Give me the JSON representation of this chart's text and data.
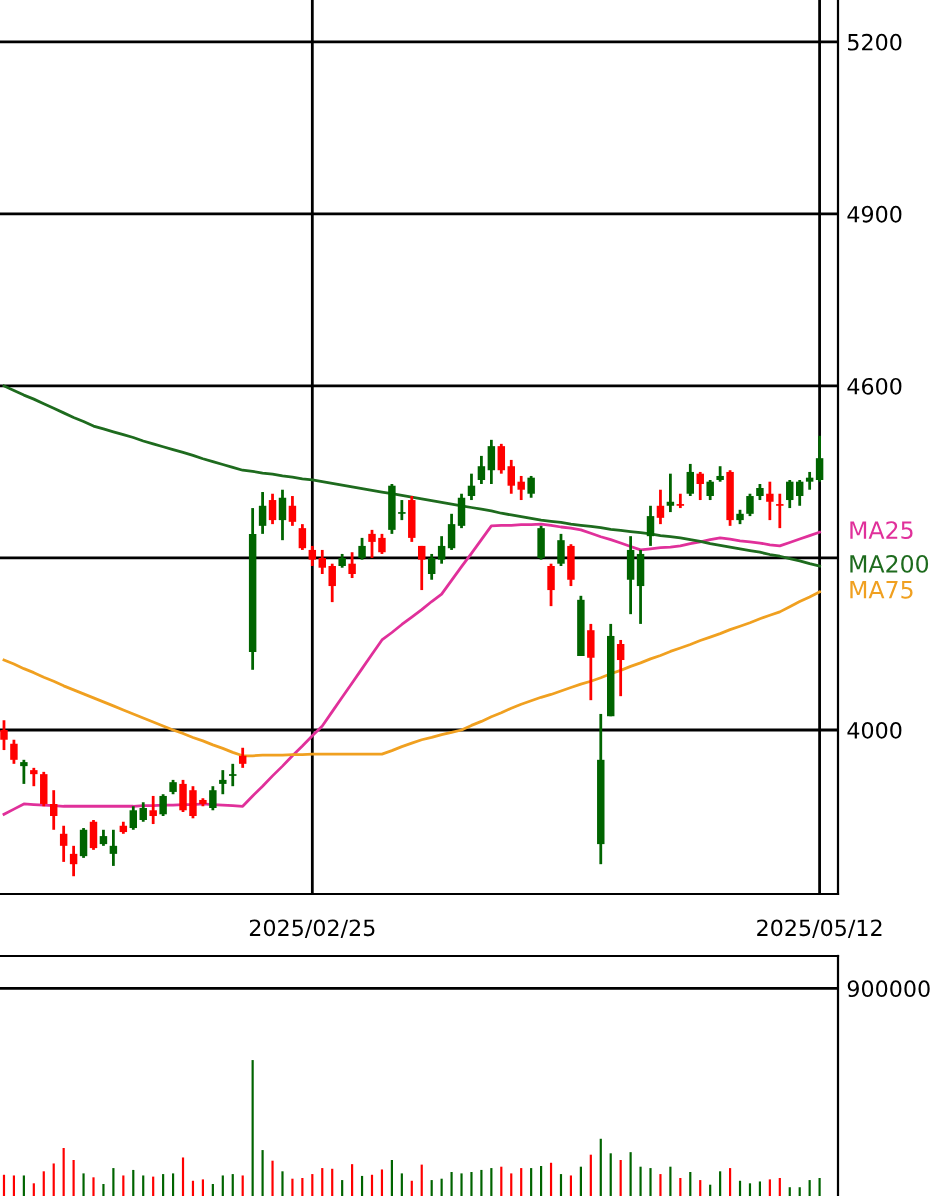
{
  "chart_data": [
    {
      "type": "candlestick",
      "categories": [
        null,
        null,
        null,
        null,
        null,
        null,
        null,
        null,
        null,
        null,
        null,
        null,
        null,
        null,
        null,
        null,
        null,
        null,
        null,
        null,
        null,
        null,
        null,
        null,
        null,
        null,
        null,
        null,
        null,
        null,
        null,
        "2025/02/25",
        null,
        null,
        null,
        null,
        null,
        null,
        null,
        null,
        null,
        null,
        null,
        null,
        null,
        null,
        null,
        null,
        null,
        null,
        null,
        null,
        null,
        null,
        null,
        null,
        null,
        null,
        null,
        null,
        null,
        null,
        null,
        null,
        null,
        null,
        null,
        null,
        null,
        null,
        null,
        null,
        null,
        null,
        null,
        null,
        null,
        null,
        null,
        null,
        null,
        null,
        "2025/05/12"
      ],
      "ohlc": [
        [
          4000,
          4017,
          3965,
          3983
        ],
        [
          3976,
          3983,
          3941,
          3948
        ],
        [
          3937,
          3948,
          3906,
          3944
        ],
        [
          3930,
          3934,
          3902,
          3923
        ],
        [
          3923,
          3927,
          3867,
          3871
        ],
        [
          3871,
          3895,
          3826,
          3850
        ],
        [
          3819,
          3833,
          3770,
          3798
        ],
        [
          3784,
          3798,
          3745,
          3766
        ],
        [
          3780,
          3829,
          3777,
          3826
        ],
        [
          3840,
          3843,
          3791,
          3794
        ],
        [
          3801,
          3826,
          3798,
          3815
        ],
        [
          3784,
          3826,
          3763,
          3798
        ],
        [
          3833,
          3840,
          3819,
          3822
        ],
        [
          3829,
          3867,
          3826,
          3860
        ],
        [
          3843,
          3874,
          3840,
          3864
        ],
        [
          3860,
          3885,
          3836,
          3850
        ],
        [
          3853,
          3888,
          3850,
          3885
        ],
        [
          3892,
          3913,
          3888,
          3909
        ],
        [
          3906,
          3913,
          3857,
          3860
        ],
        [
          3895,
          3902,
          3846,
          3850
        ],
        [
          3878,
          3881,
          3867,
          3871
        ],
        [
          3864,
          3902,
          3860,
          3895
        ],
        [
          3906,
          3930,
          3888,
          3913
        ],
        [
          3920,
          3941,
          3902,
          3923
        ],
        [
          3955,
          3969,
          3934,
          3941
        ],
        [
          4136,
          4387,
          4105,
          4342
        ],
        [
          4356,
          4415,
          4342,
          4391
        ],
        [
          4401,
          4412,
          4359,
          4366
        ],
        [
          4366,
          4419,
          4331,
          4405
        ],
        [
          4391,
          4408,
          4356,
          4363
        ],
        [
          4352,
          4359,
          4314,
          4317
        ],
        [
          4314,
          4321,
          4286,
          4297
        ],
        [
          4300,
          4314,
          4272,
          4283
        ],
        [
          4286,
          4290,
          4223,
          4251
        ],
        [
          4286,
          4307,
          4283,
          4300
        ],
        [
          4290,
          4310,
          4265,
          4272
        ],
        [
          4300,
          4335,
          4297,
          4321
        ],
        [
          4342,
          4349,
          4300,
          4328
        ],
        [
          4335,
          4342,
          4307,
          4310
        ],
        [
          4349,
          4429,
          4342,
          4426
        ],
        [
          4377,
          4401,
          4366,
          4380
        ],
        [
          4401,
          4408,
          4328,
          4335
        ],
        [
          4321,
          4321,
          4244,
          4297
        ],
        [
          4272,
          4307,
          4262,
          4300
        ],
        [
          4297,
          4338,
          4290,
          4321
        ],
        [
          4317,
          4377,
          4314,
          4359
        ],
        [
          4356,
          4412,
          4352,
          4405
        ],
        [
          4408,
          4447,
          4401,
          4426
        ],
        [
          4436,
          4478,
          4429,
          4460
        ],
        [
          4453,
          4506,
          4429,
          4495
        ],
        [
          4495,
          4499,
          4447,
          4453
        ],
        [
          4460,
          4471,
          4412,
          4426
        ],
        [
          4433,
          4443,
          4401,
          4419
        ],
        [
          4412,
          4443,
          4405,
          4440
        ],
        [
          4300,
          4356,
          4297,
          4352
        ],
        [
          4286,
          4290,
          4216,
          4244
        ],
        [
          4290,
          4342,
          4286,
          4331
        ],
        [
          4321,
          4324,
          4251,
          4262
        ],
        [
          4129,
          4234,
          4129,
          4227
        ],
        [
          4174,
          4185,
          4052,
          4126
        ],
        [
          3801,
          4028,
          3766,
          3948
        ],
        [
          4024,
          4185,
          4024,
          4164
        ],
        [
          4150,
          4157,
          4059,
          4122
        ],
        [
          4262,
          4338,
          4202,
          4314
        ],
        [
          4251,
          4314,
          4185,
          4307
        ],
        [
          4338,
          4391,
          4321,
          4373
        ],
        [
          4391,
          4419,
          4359,
          4370
        ],
        [
          4391,
          4447,
          4380,
          4398
        ],
        [
          4394,
          4412,
          4387,
          4391
        ],
        [
          4412,
          4464,
          4408,
          4450
        ],
        [
          4447,
          4450,
          4401,
          4429
        ],
        [
          4408,
          4436,
          4401,
          4433
        ],
        [
          4436,
          4460,
          4433,
          4443
        ],
        [
          4450,
          4453,
          4356,
          4366
        ],
        [
          4366,
          4384,
          4359,
          4377
        ],
        [
          4377,
          4412,
          4373,
          4408
        ],
        [
          4408,
          4429,
          4401,
          4422
        ],
        [
          4412,
          4433,
          4366,
          4398
        ],
        [
          4394,
          4412,
          4352,
          4391
        ],
        [
          4401,
          4436,
          4387,
          4433
        ],
        [
          4408,
          4436,
          4391,
          4433
        ],
        [
          4433,
          4450,
          4419,
          4440
        ],
        [
          4436,
          4513,
          4433,
          4474
        ]
      ],
      "colors": [
        "#ff0000",
        "#ff0000",
        "#006400",
        "#ff0000",
        "#ff0000",
        "#ff0000",
        "#ff0000",
        "#ff0000",
        "#006400",
        "#ff0000",
        "#006400",
        "#006400",
        "#ff0000",
        "#006400",
        "#006400",
        "#ff0000",
        "#006400",
        "#006400",
        "#ff0000",
        "#ff0000",
        "#ff0000",
        "#006400",
        "#006400",
        "#006400",
        "#ff0000",
        "#006400",
        "#006400",
        "#ff0000",
        "#006400",
        "#ff0000",
        "#ff0000",
        "#ff0000",
        "#ff0000",
        "#ff0000",
        "#006400",
        "#ff0000",
        "#006400",
        "#ff0000",
        "#ff0000",
        "#006400",
        "#006400",
        "#ff0000",
        "#ff0000",
        "#006400",
        "#006400",
        "#006400",
        "#006400",
        "#006400",
        "#006400",
        "#006400",
        "#ff0000",
        "#ff0000",
        "#ff0000",
        "#006400",
        "#006400",
        "#ff0000",
        "#006400",
        "#ff0000",
        "#006400",
        "#ff0000",
        "#006400",
        "#006400",
        "#ff0000",
        "#006400",
        "#006400",
        "#006400",
        "#ff0000",
        "#006400",
        "#ff0000",
        "#006400",
        "#ff0000",
        "#006400",
        "#006400",
        "#ff0000",
        "#006400",
        "#006400",
        "#006400",
        "#ff0000",
        "#ff0000",
        "#006400",
        "#006400",
        "#006400",
        "#006400"
      ],
      "series": [
        {
          "name": "MA25",
          "type": "line",
          "color": "#e0309a",
          "values": [
            3853,
            3862,
            3871,
            3870,
            3869,
            3868,
            3867,
            3867,
            3867,
            3867,
            3867,
            3867,
            3867,
            3867,
            3868,
            3868,
            3869,
            3869,
            3870,
            3870,
            3871,
            3870,
            3869,
            3868,
            3867,
            3885,
            3902,
            3920,
            3937,
            3955,
            3972,
            3990,
            4007,
            4032,
            4057,
            4082,
            4107,
            4132,
            4157,
            4170,
            4184,
            4197,
            4210,
            4224,
            4237,
            4261,
            4285,
            4308,
            4332,
            4356,
            4357,
            4357,
            4358,
            4358,
            4359,
            4357,
            4354,
            4352,
            4349,
            4343,
            4337,
            4332,
            4326,
            4320,
            4314,
            4316,
            4318,
            4319,
            4321,
            4325,
            4328,
            4332,
            4335,
            4333,
            4330,
            4328,
            4326,
            4323,
            4321,
            4327,
            4333,
            4339,
            4345
          ]
        },
        {
          "name": "MA200",
          "type": "line",
          "color": "#1e6b1e",
          "values": [
            4600,
            4592,
            4584,
            4577,
            4569,
            4561,
            4553,
            4545,
            4538,
            4530,
            4525,
            4520,
            4515,
            4510,
            4504,
            4499,
            4494,
            4489,
            4484,
            4479,
            4473,
            4468,
            4463,
            4458,
            4453,
            4451,
            4448,
            4446,
            4443,
            4441,
            4438,
            4436,
            4433,
            4430,
            4427,
            4424,
            4421,
            4418,
            4415,
            4412,
            4409,
            4406,
            4403,
            4400,
            4397,
            4394,
            4391,
            4388,
            4385,
            4382,
            4378,
            4375,
            4372,
            4369,
            4366,
            4364,
            4362,
            4359,
            4357,
            4355,
            4353,
            4350,
            4348,
            4346,
            4344,
            4342,
            4339,
            4337,
            4335,
            4332,
            4329,
            4325,
            4322,
            4319,
            4316,
            4313,
            4310,
            4306,
            4303,
            4299,
            4295,
            4290,
            4286
          ]
        },
        {
          "name": "MA75",
          "type": "line",
          "color": "#f0a020",
          "values": [
            4122,
            4115,
            4107,
            4100,
            4092,
            4085,
            4077,
            4070,
            4063,
            4056,
            4049,
            4042,
            4035,
            4028,
            4021,
            4014,
            4007,
            4000,
            3994,
            3987,
            3981,
            3974,
            3968,
            3961,
            3955,
            3955,
            3956,
            3956,
            3956,
            3957,
            3957,
            3958,
            3958,
            3958,
            3958,
            3958,
            3958,
            3958,
            3958,
            3964,
            3971,
            3977,
            3983,
            3987,
            3992,
            3996,
            4000,
            4008,
            4015,
            4023,
            4030,
            4038,
            4045,
            4051,
            4057,
            4062,
            4068,
            4074,
            4080,
            4085,
            4091,
            4098,
            4104,
            4111,
            4117,
            4124,
            4130,
            4137,
            4143,
            4149,
            4156,
            4162,
            4168,
            4175,
            4181,
            4187,
            4194,
            4200,
            4206,
            4215,
            4224,
            4232,
            4241
          ]
        }
      ],
      "ylim": [
        3714,
        5273
      ],
      "yticks": [
        4000,
        {
          "value": 4300,
          "label": null
        },
        4600,
        4900,
        5200
      ],
      "grid": true,
      "legend": false,
      "marker": "none",
      "line_style": "solid"
    },
    {
      "type": "bar",
      "categories": [
        null,
        null,
        null,
        null,
        null,
        null,
        null,
        null,
        null,
        null,
        null,
        null,
        null,
        null,
        null,
        null,
        null,
        null,
        null,
        null,
        null,
        null,
        null,
        null,
        null,
        null,
        null,
        null,
        null,
        null,
        null,
        null,
        null,
        null,
        null,
        null,
        null,
        null,
        null,
        null,
        null,
        null,
        null,
        null,
        null,
        null,
        null,
        null,
        null,
        null,
        null,
        null,
        null,
        null,
        null,
        null,
        null,
        null,
        null,
        null,
        null,
        null,
        null,
        null,
        null,
        null,
        null,
        null,
        null,
        null,
        null,
        null,
        null,
        null,
        null,
        null,
        null,
        null,
        null,
        null,
        null,
        null,
        null
      ],
      "values": [
        92000,
        89000,
        89000,
        55000,
        107000,
        141000,
        208000,
        156000,
        98000,
        81000,
        52000,
        121000,
        89000,
        113000,
        89000,
        84000,
        95000,
        98000,
        167000,
        66000,
        72000,
        52000,
        89000,
        95000,
        89000,
        589000,
        199000,
        153000,
        107000,
        75000,
        78000,
        95000,
        121000,
        118000,
        69000,
        138000,
        87000,
        92000,
        115000,
        156000,
        98000,
        66000,
        136000,
        69000,
        75000,
        104000,
        98000,
        104000,
        113000,
        121000,
        127000,
        98000,
        121000,
        121000,
        130000,
        144000,
        95000,
        89000,
        127000,
        179000,
        248000,
        185000,
        156000,
        190000,
        127000,
        121000,
        95000,
        127000,
        78000,
        104000,
        69000,
        49000,
        107000,
        121000,
        66000,
        55000,
        63000,
        72000,
        78000,
        38000,
        38000,
        69000,
        78000
      ],
      "colors": [
        "#ff0000",
        "#ff0000",
        "#006400",
        "#ff0000",
        "#ff0000",
        "#ff0000",
        "#ff0000",
        "#ff0000",
        "#006400",
        "#ff0000",
        "#006400",
        "#006400",
        "#ff0000",
        "#006400",
        "#006400",
        "#ff0000",
        "#006400",
        "#006400",
        "#ff0000",
        "#ff0000",
        "#ff0000",
        "#006400",
        "#006400",
        "#006400",
        "#ff0000",
        "#006400",
        "#006400",
        "#ff0000",
        "#006400",
        "#ff0000",
        "#ff0000",
        "#ff0000",
        "#ff0000",
        "#ff0000",
        "#006400",
        "#ff0000",
        "#006400",
        "#ff0000",
        "#ff0000",
        "#006400",
        "#006400",
        "#ff0000",
        "#ff0000",
        "#006400",
        "#006400",
        "#006400",
        "#006400",
        "#006400",
        "#006400",
        "#006400",
        "#ff0000",
        "#ff0000",
        "#ff0000",
        "#006400",
        "#006400",
        "#ff0000",
        "#006400",
        "#ff0000",
        "#006400",
        "#ff0000",
        "#006400",
        "#006400",
        "#ff0000",
        "#006400",
        "#006400",
        "#006400",
        "#ff0000",
        "#006400",
        "#ff0000",
        "#006400",
        "#ff0000",
        "#006400",
        "#006400",
        "#ff0000",
        "#006400",
        "#006400",
        "#006400",
        "#ff0000",
        "#ff0000",
        "#006400",
        "#006400",
        "#006400",
        "#006400"
      ],
      "ylim": [
        0,
        1040000
      ],
      "yticks": [
        900000
      ],
      "grid": "y",
      "legend": false,
      "tick_labels": "y"
    }
  ]
}
